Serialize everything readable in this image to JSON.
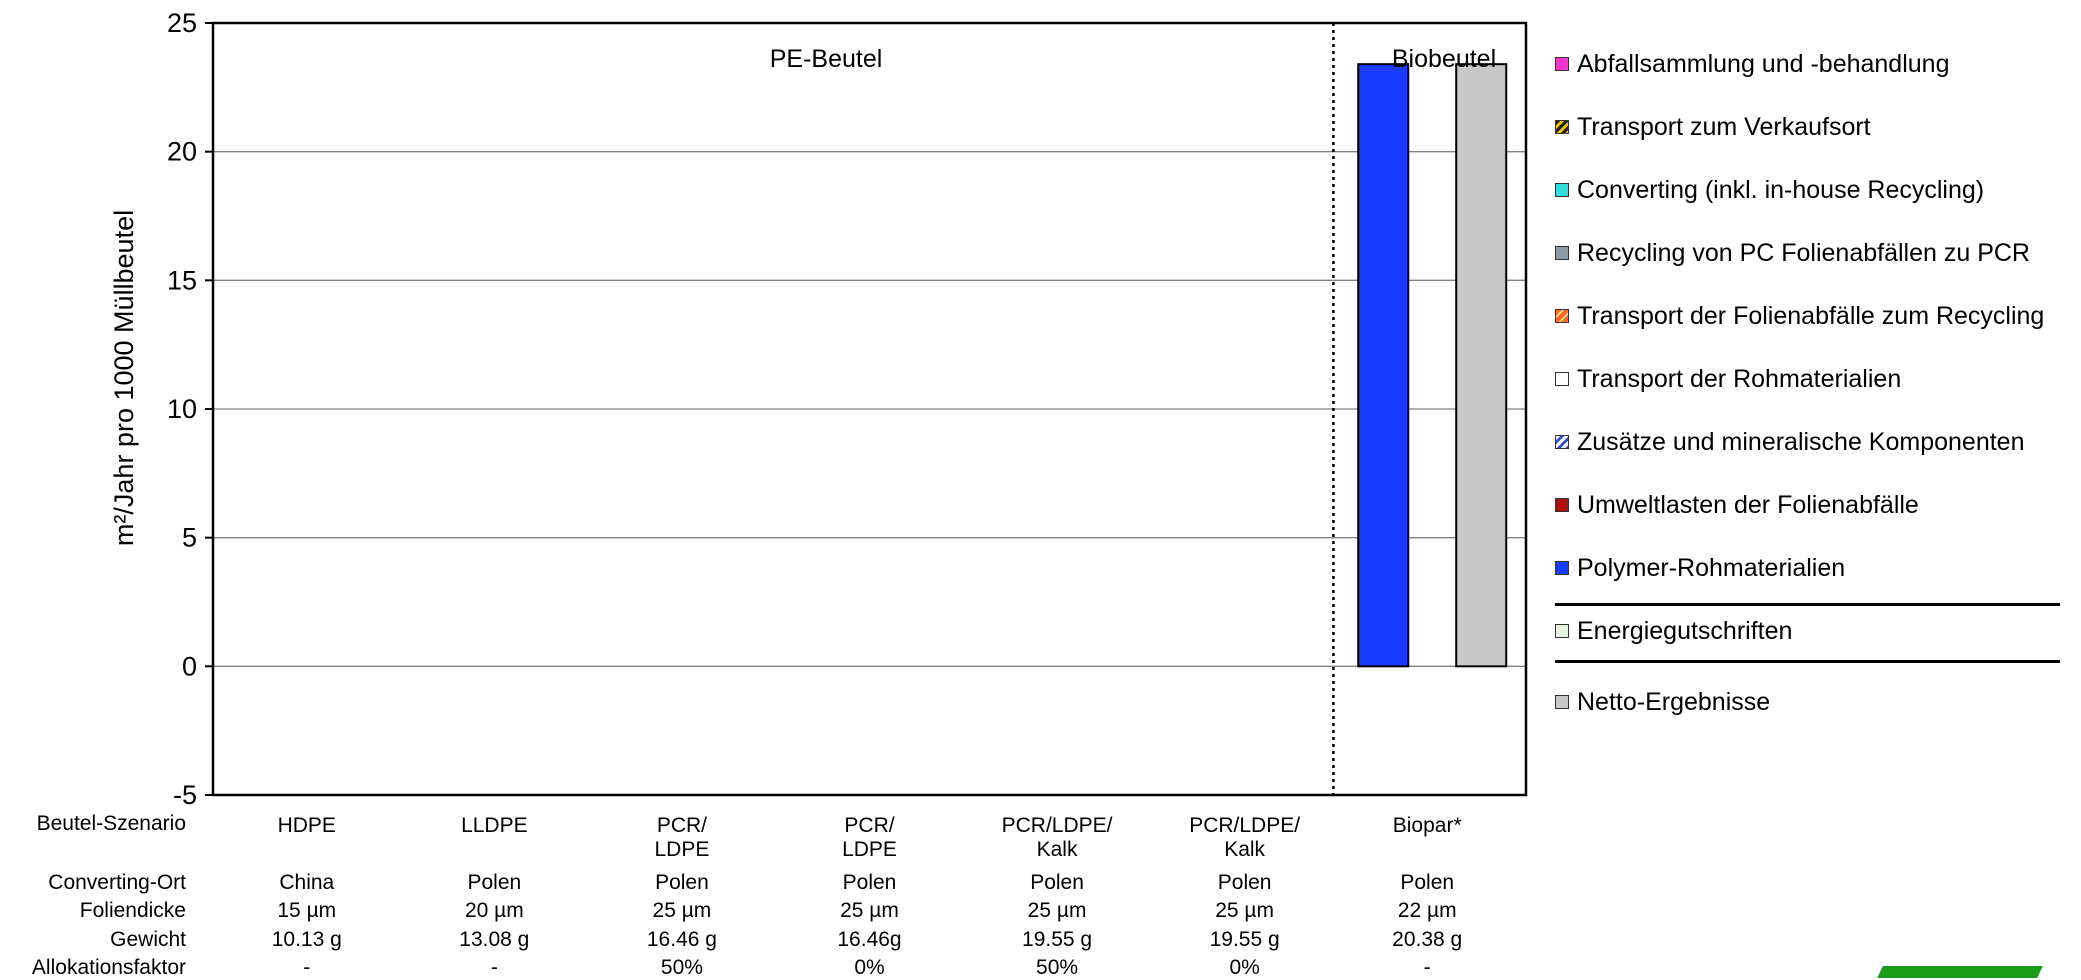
{
  "chart_data": {
    "type": "bar",
    "stacked": true,
    "ylabel": "m²/Jahr pro 1000 Müllbeutel",
    "ylim": [
      -5,
      25
    ],
    "yticks": [
      25,
      20,
      15,
      10,
      5,
      0,
      -5
    ],
    "grid": true,
    "group_labels": [
      "PE-Beutel",
      "Biobeutel"
    ],
    "scenarios": [
      {
        "name": "HDPE",
        "converting_ort": "China",
        "foliendicke": "15 µm",
        "gewicht": "10.13 g",
        "allokationsfaktor": "-"
      },
      {
        "name": "LLDPE",
        "converting_ort": "Polen",
        "foliendicke": "20 µm",
        "gewicht": "13.08 g",
        "allokationsfaktor": "-"
      },
      {
        "name": "PCR/\nLDPE",
        "converting_ort": "Polen",
        "foliendicke": "25 µm",
        "gewicht": "16.46 g",
        "allokationsfaktor": "50%"
      },
      {
        "name": "PCR/\nLDPE",
        "converting_ort": "Polen",
        "foliendicke": "25 µm",
        "gewicht": "16.46g",
        "allokationsfaktor": "0%"
      },
      {
        "name": "PCR/LDPE/\nKalk",
        "converting_ort": "Polen",
        "foliendicke": "25 µm",
        "gewicht": "19.55 g",
        "allokationsfaktor": "50%"
      },
      {
        "name": "PCR/LDPE/\nKalk",
        "converting_ort": "Polen",
        "foliendicke": "25 µm",
        "gewicht": "19.55 g",
        "allokationsfaktor": "0%"
      },
      {
        "name": "Biopar*",
        "converting_ort": "Polen",
        "foliendicke": "22 µm",
        "gewicht": "20.38 g",
        "allokationsfaktor": "-"
      }
    ],
    "row_labels": {
      "szenario": "Beutel-Szenario",
      "converting_ort": "Converting-Ort",
      "foliendicke": "Foliendicke",
      "gewicht": "Gewicht",
      "allokationsfaktor": "Allokationsfaktor"
    },
    "bars": [
      {
        "scenario_index": 6,
        "series": "Polymer-Rohmaterialien",
        "value": 23.4,
        "color": "#1a3cff"
      },
      {
        "scenario_index": 6,
        "series": "Netto-Ergebnisse",
        "value": 23.4,
        "color": "#c8c8c8"
      }
    ],
    "legend_position": "right",
    "legend": [
      {
        "label": "Abfallsammlung und -behandlung",
        "color": "#ff33cc",
        "pattern": "solid"
      },
      {
        "label": "Transport zum Verkaufsort",
        "color": "#f2c200",
        "pattern": "diag-dark"
      },
      {
        "label": "Converting (inkl. in-house Recycling)",
        "color": "#33dddd",
        "pattern": "solid"
      },
      {
        "label": "Recycling von PC Folienabfällen zu PCR",
        "color": "#8a9aa6",
        "pattern": "solid"
      },
      {
        "label": "Transport der Folienabfälle zum Recycling",
        "color": "#ff6a1a",
        "pattern": "diag"
      },
      {
        "label": "Transport der Rohmaterialien",
        "color": "#ffffff",
        "pattern": "solid"
      },
      {
        "label": "Zusätze und mineralische Komponenten",
        "color": "#2a4fd8",
        "pattern": "diag-light"
      },
      {
        "label": "Umweltlasten der Folienabfälle",
        "color": "#aa1010",
        "pattern": "solid"
      },
      {
        "label": "Polymer-Rohmaterialien",
        "color": "#1a3cff",
        "pattern": "solid"
      },
      {
        "label": "Energiegutschriften",
        "color": "#e6f5e0",
        "pattern": "solid"
      },
      {
        "label": "Netto-Ergebnisse",
        "color": "#c8c8c8",
        "pattern": "solid"
      }
    ]
  }
}
